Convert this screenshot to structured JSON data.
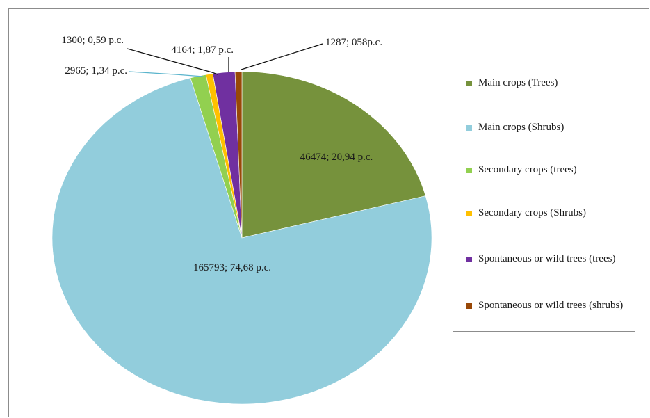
{
  "chart_data": {
    "type": "pie",
    "series": [
      {
        "name": "Main crops (Trees)",
        "value": 46474,
        "label": "46474; 20,94 p.c.",
        "color": "#76923c"
      },
      {
        "name": "Main crops (Shrubs)",
        "value": 165793,
        "label": "165793; 74,68 p.c.",
        "color": "#92cddc"
      },
      {
        "name": "Secondary crops (trees)",
        "value": 2965,
        "label": "2965; 1,34 p.c.",
        "color": "#92d050"
      },
      {
        "name": "Secondary crops (Shrubs)",
        "value": 1300,
        "label": "1300; 0,59 p.c.",
        "color": "#ffc000"
      },
      {
        "name": "Spontaneous or wild trees (trees)",
        "value": 4164,
        "label": "4164; 1,87 p.c.",
        "color": "#7030a0"
      },
      {
        "name": "Spontaneous or wild trees (shrubs)",
        "value": 1287,
        "label": "1287; 058p.c.",
        "color": "#984807"
      }
    ],
    "legend_position": "right"
  }
}
